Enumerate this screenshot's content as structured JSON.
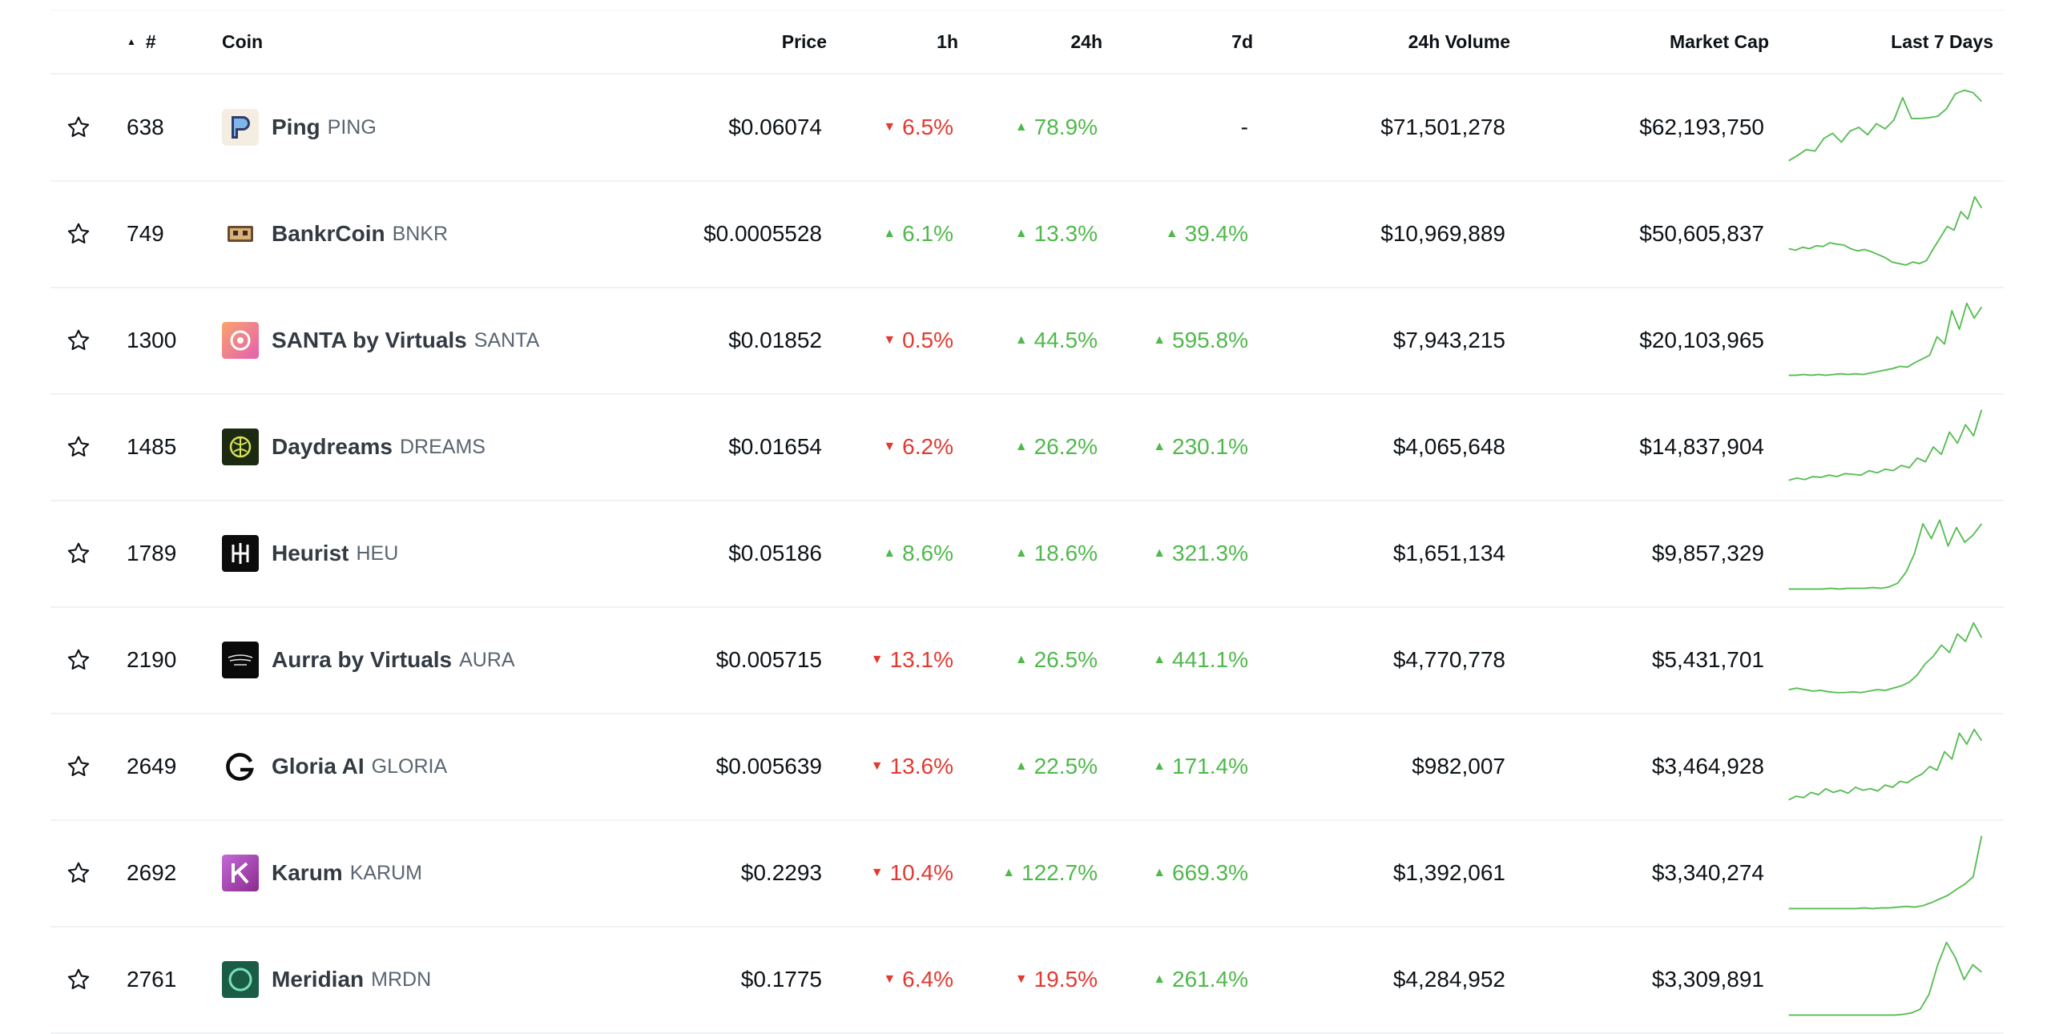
{
  "header": {
    "rank_label": "#",
    "coin_label": "Coin",
    "price_label": "Price",
    "h1_label": "1h",
    "h24_label": "24h",
    "d7_label": "7d",
    "volume_label": "24h Volume",
    "mcap_label": "Market Cap",
    "spark_label": "Last 7 Days"
  },
  "colors": {
    "up": "#4fb94b",
    "down": "#e23a31",
    "spark": "#57bd53",
    "divider": "#eff2f5"
  },
  "rows": [
    {
      "rank": "638",
      "name": "Ping",
      "symbol": "PING",
      "price": "$0.06074",
      "h1": "6.5%",
      "h1_dir": "down",
      "h24": "78.9%",
      "h24_dir": "up",
      "d7": "-",
      "d7_dir": "none",
      "volume": "$71,501,278",
      "mcap": "$62,193,750",
      "logo": "ping-logo",
      "spark": [
        0.05,
        0.12,
        0.2,
        0.18,
        0.35,
        0.42,
        0.3,
        0.45,
        0.5,
        0.4,
        0.55,
        0.48,
        0.6,
        0.9,
        0.62,
        0.62,
        0.63,
        0.65,
        0.75,
        0.95,
        1.0,
        0.97,
        0.85
      ]
    },
    {
      "rank": "749",
      "name": "BankrCoin",
      "symbol": "BNKR",
      "price": "$0.0005528",
      "h1": "6.1%",
      "h1_dir": "up",
      "h24": "13.3%",
      "h24_dir": "up",
      "d7": "39.4%",
      "d7_dir": "up",
      "volume": "$10,969,889",
      "mcap": "$50,605,837",
      "logo": "bankr-logo",
      "spark": [
        0.3,
        0.28,
        0.32,
        0.3,
        0.34,
        0.33,
        0.38,
        0.36,
        0.35,
        0.3,
        0.27,
        0.29,
        0.26,
        0.22,
        0.18,
        0.12,
        0.1,
        0.08,
        0.12,
        0.1,
        0.14,
        0.3,
        0.45,
        0.6,
        0.55,
        0.8,
        0.7,
        1.0,
        0.85
      ]
    },
    {
      "rank": "1300",
      "name": "SANTA by Virtuals",
      "symbol": "SANTA",
      "price": "$0.01852",
      "h1": "0.5%",
      "h1_dir": "down",
      "h24": "44.5%",
      "h24_dir": "up",
      "d7": "595.8%",
      "d7_dir": "up",
      "volume": "$7,943,215",
      "mcap": "$20,103,965",
      "logo": "santa-logo",
      "spark": [
        0.03,
        0.03,
        0.04,
        0.03,
        0.04,
        0.03,
        0.04,
        0.05,
        0.04,
        0.05,
        0.04,
        0.06,
        0.08,
        0.1,
        0.12,
        0.15,
        0.14,
        0.2,
        0.25,
        0.3,
        0.55,
        0.45,
        0.9,
        0.65,
        1.0,
        0.8,
        0.95
      ]
    },
    {
      "rank": "1485",
      "name": "Daydreams",
      "symbol": "DREAMS",
      "price": "$0.01654",
      "h1": "6.2%",
      "h1_dir": "down",
      "h24": "26.2%",
      "h24_dir": "up",
      "d7": "230.1%",
      "d7_dir": "up",
      "volume": "$4,065,648",
      "mcap": "$14,837,904",
      "logo": "daydreams-logo",
      "spark": [
        0.05,
        0.08,
        0.06,
        0.1,
        0.09,
        0.12,
        0.1,
        0.14,
        0.13,
        0.12,
        0.18,
        0.15,
        0.2,
        0.18,
        0.25,
        0.22,
        0.35,
        0.3,
        0.5,
        0.4,
        0.7,
        0.55,
        0.8,
        0.65,
        1.0
      ]
    },
    {
      "rank": "1789",
      "name": "Heurist",
      "symbol": "HEU",
      "price": "$0.05186",
      "h1": "8.6%",
      "h1_dir": "up",
      "h24": "18.6%",
      "h24_dir": "up",
      "d7": "321.3%",
      "d7_dir": "up",
      "volume": "$1,651,134",
      "mcap": "$9,857,329",
      "logo": "heurist-logo",
      "spark": [
        0.02,
        0.02,
        0.02,
        0.02,
        0.02,
        0.03,
        0.02,
        0.03,
        0.03,
        0.03,
        0.04,
        0.03,
        0.05,
        0.1,
        0.25,
        0.5,
        0.9,
        0.7,
        0.95,
        0.6,
        0.85,
        0.65,
        0.75,
        0.9
      ]
    },
    {
      "rank": "2190",
      "name": "Aurra by Virtuals",
      "symbol": "AURA",
      "price": "$0.005715",
      "h1": "13.1%",
      "h1_dir": "down",
      "h24": "26.5%",
      "h24_dir": "up",
      "d7": "441.1%",
      "d7_dir": "up",
      "volume": "$4,770,778",
      "mcap": "$5,431,701",
      "logo": "aurra-logo",
      "spark": [
        0.1,
        0.12,
        0.1,
        0.08,
        0.09,
        0.07,
        0.06,
        0.06,
        0.07,
        0.06,
        0.08,
        0.1,
        0.09,
        0.12,
        0.15,
        0.2,
        0.3,
        0.45,
        0.55,
        0.7,
        0.6,
        0.85,
        0.75,
        1.0,
        0.8
      ]
    },
    {
      "rank": "2649",
      "name": "Gloria AI",
      "symbol": "GLORIA",
      "price": "$0.005639",
      "h1": "13.6%",
      "h1_dir": "down",
      "h24": "22.5%",
      "h24_dir": "up",
      "d7": "171.4%",
      "d7_dir": "up",
      "volume": "$982,007",
      "mcap": "$3,464,928",
      "logo": "gloria-logo",
      "spark": [
        0.05,
        0.1,
        0.08,
        0.15,
        0.12,
        0.2,
        0.15,
        0.18,
        0.14,
        0.22,
        0.18,
        0.2,
        0.17,
        0.25,
        0.22,
        0.3,
        0.28,
        0.35,
        0.4,
        0.5,
        0.45,
        0.7,
        0.6,
        0.95,
        0.8,
        1.0,
        0.85
      ]
    },
    {
      "rank": "2692",
      "name": "Karum",
      "symbol": "KARUM",
      "price": "$0.2293",
      "h1": "10.4%",
      "h1_dir": "down",
      "h24": "122.7%",
      "h24_dir": "up",
      "d7": "669.3%",
      "d7_dir": "up",
      "volume": "$1,392,061",
      "mcap": "$3,340,274",
      "logo": "karum-logo",
      "spark": [
        0.02,
        0.02,
        0.02,
        0.02,
        0.02,
        0.02,
        0.02,
        0.02,
        0.02,
        0.03,
        0.02,
        0.03,
        0.03,
        0.04,
        0.05,
        0.04,
        0.06,
        0.1,
        0.15,
        0.2,
        0.28,
        0.35,
        0.45,
        1.0
      ]
    },
    {
      "rank": "2761",
      "name": "Meridian",
      "symbol": "MRDN",
      "price": "$0.1775",
      "h1": "6.4%",
      "h1_dir": "down",
      "h24": "19.5%",
      "h24_dir": "down",
      "d7": "261.4%",
      "d7_dir": "up",
      "volume": "$4,284,952",
      "mcap": "$3,309,891",
      "logo": "meridian-logo",
      "spark": [
        0.02,
        0.02,
        0.02,
        0.02,
        0.02,
        0.02,
        0.02,
        0.02,
        0.02,
        0.02,
        0.02,
        0.02,
        0.02,
        0.03,
        0.05,
        0.1,
        0.3,
        0.7,
        1.0,
        0.8,
        0.5,
        0.7,
        0.6
      ]
    }
  ]
}
